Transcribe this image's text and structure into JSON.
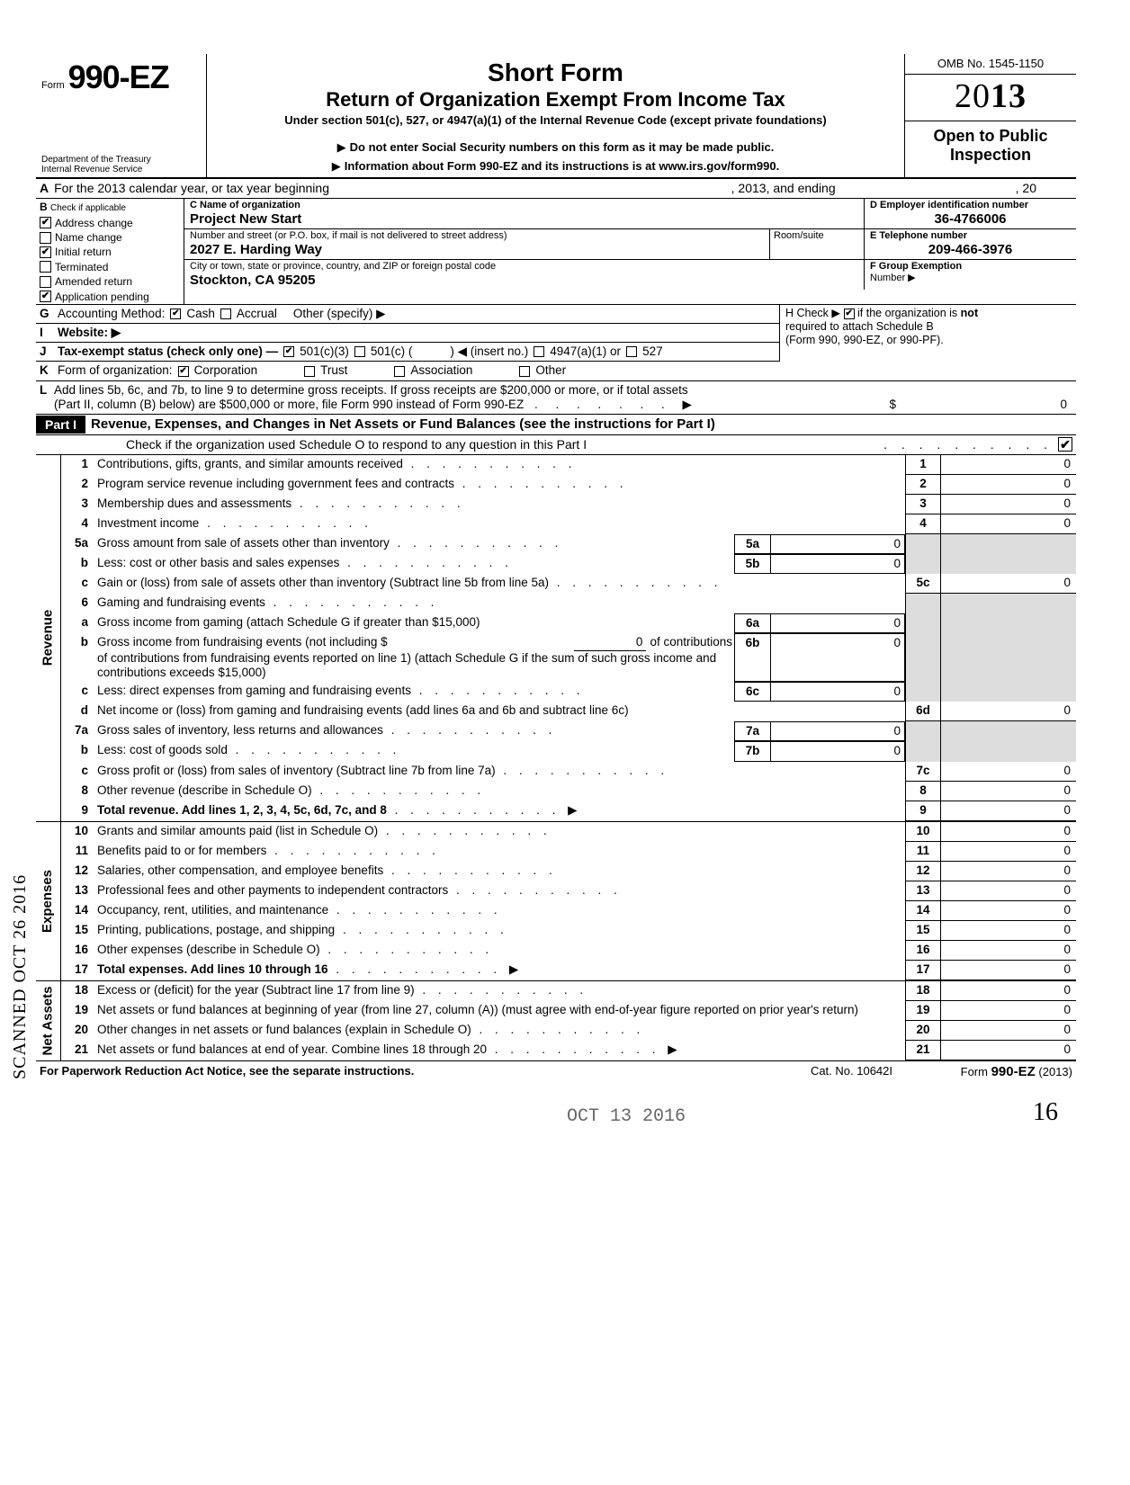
{
  "scan_stamp": "SCANNED OCT 26 2016",
  "header": {
    "form_word": "Form",
    "form_number": "990-EZ",
    "dept1": "Department of the Treasury",
    "dept2": "Internal Revenue Service",
    "title": "Short Form",
    "subtitle": "Return of Organization Exempt From Income Tax",
    "under": "Under section 501(c), 527, or 4947(a)(1) of the Internal Revenue Code (except private foundations)",
    "note1": "Do not enter Social Security numbers on this form as it may be made public.",
    "note2": "Information about Form 990-EZ and its instructions is at www.irs.gov/form990.",
    "omb": "OMB No. 1545-1150",
    "year_prefix": "20",
    "year_bold": "13",
    "open1": "Open to Public",
    "open2": "Inspection"
  },
  "row_a": {
    "label_a": "A",
    "text1": "For the 2013 calendar year, or tax year beginning",
    "text2": ", 2013, and ending",
    "text3": ", 20"
  },
  "col_b": {
    "head": "B",
    "head2": "Check if applicable",
    "items": [
      {
        "label": "Address change",
        "checked": true
      },
      {
        "label": "Name change",
        "checked": false
      },
      {
        "label": "Initial return",
        "checked": true
      },
      {
        "label": "Terminated",
        "checked": false
      },
      {
        "label": "Amended return",
        "checked": false
      },
      {
        "label": "Application pending",
        "checked": true
      }
    ]
  },
  "col_c": {
    "r1_lbl": "C Name of organization",
    "r1_val": "Project New Start",
    "r2_lbl": "Number and street (or P.O. box, if mail is not delivered to street address)",
    "r2_val": "2027 E. Harding Way",
    "r2_room_lbl": "Room/suite",
    "r3_lbl": "City or town, state or province, country, and ZIP or foreign postal code",
    "r3_val": "Stockton, CA 95205"
  },
  "col_d": {
    "lbl": "D Employer identification number",
    "val": "36-4766006"
  },
  "col_e": {
    "lbl": "E Telephone number",
    "val": "209-466-3976"
  },
  "col_f": {
    "lbl": "F Group Exemption",
    "lbl2": "Number ▶"
  },
  "row_g": {
    "lead": "G",
    "label": "Accounting Method:",
    "cash": "Cash",
    "accrual": "Accrual",
    "other": "Other (specify) ▶",
    "cash_checked": true,
    "accrual_checked": false
  },
  "row_h": {
    "text1": "H Check ▶",
    "text2": "if the organization is",
    "text3": "not",
    "text4": "required to attach Schedule B",
    "text5": "(Form 990, 990-EZ, or 990-PF).",
    "checked": true
  },
  "row_i": {
    "lead": "I",
    "label": "Website: ▶"
  },
  "row_j": {
    "lead": "J",
    "label": "Tax-exempt status (check only one) —",
    "opts": [
      "501(c)(3)",
      "501(c) (",
      ") ◀ (insert no.)",
      "4947(a)(1) or",
      "527"
    ],
    "checked_idx": 0
  },
  "row_k": {
    "lead": "K",
    "label": "Form of organization:",
    "opts": [
      "Corporation",
      "Trust",
      "Association",
      "Other"
    ],
    "checked_idx": 0
  },
  "row_l": {
    "lead": "L",
    "text1": "Add lines 5b, 6c, and 7b, to line 9 to determine gross receipts. If gross receipts are $200,000 or more, or if total assets",
    "text2": "(Part II, column (B) below) are $500,000 or more, file Form 990 instead of Form 990-EZ",
    "amt": "0"
  },
  "part1": {
    "head": "Part I",
    "title": "Revenue, Expenses, and Changes in Net Assets or Fund Balances (see the instructions for Part I)",
    "check_line": "Check if the organization used Schedule O to respond to any question in this Part I",
    "check_checked": true
  },
  "sections": [
    {
      "side": "Revenue",
      "rows": [
        {
          "n": "1",
          "d": "Contributions, gifts, grants, and similar amounts received",
          "bn": "1",
          "bv": "0"
        },
        {
          "n": "2",
          "d": "Program service revenue including government fees and contracts",
          "bn": "2",
          "bv": "0"
        },
        {
          "n": "3",
          "d": "Membership dues and assessments",
          "bn": "3",
          "bv": "0"
        },
        {
          "n": "4",
          "d": "Investment income",
          "bn": "4",
          "bv": "0"
        },
        {
          "n": "5a",
          "d": "Gross amount from sale of assets other than inventory",
          "sn": "5a",
          "sv": "0",
          "shade": true
        },
        {
          "n": "b",
          "d": "Less: cost or other basis and sales expenses",
          "sn": "5b",
          "sv": "0",
          "shade": true
        },
        {
          "n": "c",
          "d": "Gain or (loss) from sale of assets other than inventory (Subtract line 5b from line 5a)",
          "bn": "5c",
          "bv": "0"
        },
        {
          "n": "6",
          "d": "Gaming and fundraising events",
          "shade": true,
          "noval": true
        },
        {
          "n": "a",
          "d": "Gross income from gaming (attach Schedule G if greater than $15,000)",
          "sn": "6a",
          "sv": "0",
          "shade": true,
          "twoline": true
        },
        {
          "n": "b",
          "d": "Gross income from fundraising events (not including  $",
          "d2": "of contributions from fundraising events reported on line 1) (attach Schedule G if the sum of such gross income and contributions exceeds $15,000)",
          "sn": "6b",
          "sv": "0",
          "subinline": "0",
          "shade": true,
          "threeline": true
        },
        {
          "n": "c",
          "d": "Less: direct expenses from gaming and fundraising events",
          "sn": "6c",
          "sv": "0",
          "shade": true
        },
        {
          "n": "d",
          "d": "Net income or (loss) from gaming and fundraising events (add lines 6a and 6b and subtract line 6c)",
          "bn": "6d",
          "bv": "0",
          "twoline": true
        },
        {
          "n": "7a",
          "d": "Gross sales of inventory, less returns and allowances",
          "sn": "7a",
          "sv": "0",
          "shade": true
        },
        {
          "n": "b",
          "d": "Less: cost of goods sold",
          "sn": "7b",
          "sv": "0",
          "shade": true
        },
        {
          "n": "c",
          "d": "Gross profit or (loss) from sales of inventory (Subtract line 7b from line 7a)",
          "bn": "7c",
          "bv": "0"
        },
        {
          "n": "8",
          "d": "Other revenue (describe in Schedule O)",
          "bn": "8",
          "bv": "0"
        },
        {
          "n": "9",
          "d": "Total revenue. Add lines 1, 2, 3, 4, 5c, 6d, 7c, and 8",
          "bn": "9",
          "bv": "0",
          "bold": true,
          "arrow": true
        }
      ]
    },
    {
      "side": "Expenses",
      "rows": [
        {
          "n": "10",
          "d": "Grants and similar amounts paid (list in Schedule O)",
          "bn": "10",
          "bv": "0"
        },
        {
          "n": "11",
          "d": "Benefits paid to or for members",
          "bn": "11",
          "bv": "0"
        },
        {
          "n": "12",
          "d": "Salaries, other compensation, and employee benefits",
          "bn": "12",
          "bv": "0"
        },
        {
          "n": "13",
          "d": "Professional fees and other payments to independent contractors",
          "bn": "13",
          "bv": "0"
        },
        {
          "n": "14",
          "d": "Occupancy, rent, utilities, and maintenance",
          "bn": "14",
          "bv": "0"
        },
        {
          "n": "15",
          "d": "Printing, publications, postage, and shipping",
          "bn": "15",
          "bv": "0"
        },
        {
          "n": "16",
          "d": "Other expenses (describe in Schedule O)",
          "bn": "16",
          "bv": "0"
        },
        {
          "n": "17",
          "d": "Total expenses. Add lines 10 through 16",
          "bn": "17",
          "bv": "0",
          "bold": true,
          "arrow": true
        }
      ]
    },
    {
      "side": "Net Assets",
      "rows": [
        {
          "n": "18",
          "d": "Excess or (deficit) for the year (Subtract line 17 from line 9)",
          "bn": "18",
          "bv": "0"
        },
        {
          "n": "19",
          "d": "Net assets or fund balances at beginning of year (from line 27, column (A)) (must agree with end-of-year figure reported on prior year's return)",
          "bn": "19",
          "bv": "0",
          "twoline": true
        },
        {
          "n": "20",
          "d": "Other changes in net assets or fund balances (explain in Schedule O)",
          "bn": "20",
          "bv": "0"
        },
        {
          "n": "21",
          "d": "Net assets or fund balances at end of year. Combine lines 18 through 20",
          "bn": "21",
          "bv": "0",
          "arrow": true
        }
      ]
    }
  ],
  "stamp_date": "OCT 13 2016",
  "footer": {
    "l": "For Paperwork Reduction Act Notice, see the separate instructions.",
    "c": "Cat. No. 10642I",
    "r_pre": "Form ",
    "r_form": "990-EZ",
    "r_year": " (2013)"
  },
  "pagenum": "16"
}
